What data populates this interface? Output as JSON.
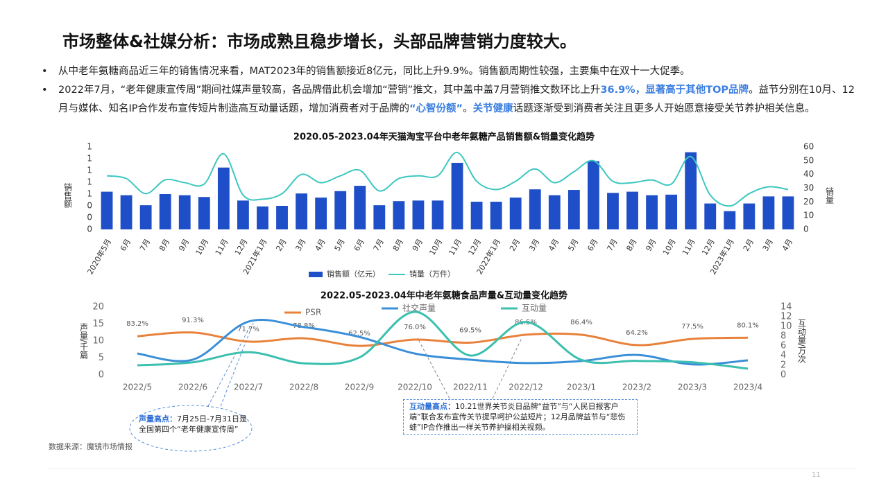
{
  "header": {
    "title": "市场整体&社媒分析：市场成熟且稳步增长，头部品牌营销力度较大。"
  },
  "bullets": [
    [
      {
        "text": "从中老年氨糖商品近三年的销售情况来看，MAT2023年的销售额接近8亿元，同比上升9.9%。销售额周期性较强，主要集中在双十一大促季。",
        "emphasis": false
      }
    ],
    [
      {
        "text": "2022年7月，“老年健康宣传周”期间社媒声量较高，各品牌借此机会增加“营销”推文，其中盖中盖7月营销推文数环比上升",
        "emphasis": false
      },
      {
        "text": "36.9%，显著高于其他TOP品牌",
        "emphasis": true
      },
      {
        "text": "。益节分别在10月、12月与媒体、知名IP合作发布宣传短片制造高互动量话题，增加消费者对于品牌的",
        "emphasis": false
      },
      {
        "text": "“心智份额”",
        "emphasis": true
      },
      {
        "text": "。",
        "emphasis": false
      },
      {
        "text": "关节健康",
        "emphasis": true
      },
      {
        "text": "话题逐渐受到消费者关注且更多人开始愿意接受关节养护相关信息。",
        "emphasis": false
      }
    ]
  ],
  "chart_data": [
    {
      "type": "combo",
      "title": "2020.05-2023.04年天猫淘宝平台中老年氨糖产品销售额&销量变化趋势",
      "ylabel": "销售额",
      "y2label": "销量",
      "categories": [
        "2020年5月",
        "6月",
        "7月",
        "8月",
        "9月",
        "10月",
        "11月",
        "12月",
        "2021年1月",
        "2月",
        "3月",
        "4月",
        "5月",
        "6月",
        "7月",
        "8月",
        "9月",
        "10月",
        "11月",
        "12月",
        "2022年1月",
        "2月",
        "3月",
        "4月",
        "5月",
        "6月",
        "7月",
        "8月",
        "9月",
        "10月",
        "11月",
        "12月",
        "2023年1月",
        "2月",
        "3月",
        "4月"
      ],
      "series": [
        {
          "name": "销售额（亿元）",
          "type": "bar",
          "color": "#1f4fc8",
          "values": [
            0.64,
            0.58,
            0.41,
            0.6,
            0.58,
            0.55,
            1.05,
            0.49,
            0.39,
            0.4,
            0.61,
            0.54,
            0.65,
            0.74,
            0.41,
            0.48,
            0.49,
            0.49,
            1.13,
            0.47,
            0.47,
            0.54,
            0.68,
            0.58,
            0.67,
            1.16,
            0.62,
            0.64,
            0.58,
            0.59,
            1.31,
            0.44,
            0.31,
            0.44,
            0.56,
            0.56
          ]
        },
        {
          "name": "销量（万件）",
          "type": "line",
          "axis": "y2",
          "color": "#3cc7c0",
          "values": [
            39,
            37,
            26,
            36,
            34,
            33,
            55,
            25,
            22,
            26,
            40,
            34,
            39,
            43,
            28,
            37,
            39,
            39,
            56,
            35,
            29,
            35,
            44,
            34,
            42,
            50,
            35,
            34,
            36,
            33,
            53,
            25,
            17,
            26,
            31,
            29
          ]
        }
      ],
      "ylim": [
        0,
        1.4
      ],
      "yticks": [
        0,
        {
          "value": 0.2,
          "label": "0"
        },
        {
          "value": 0.4,
          "label": "0"
        },
        {
          "value": 0.6,
          "label": "1"
        },
        {
          "value": 0.8,
          "label": "1"
        },
        1,
        {
          "value": 1.2,
          "label": "1"
        },
        {
          "value": 1.4,
          "label": "1"
        }
      ],
      "y2lim": [
        0,
        60
      ],
      "y2ticks": [
        0,
        10,
        20,
        30,
        40,
        50,
        60
      ],
      "legend": "bottom"
    },
    {
      "type": "line",
      "title": "2022.05-2023.04年中老年氨糖食品声量&互动量变化趋势",
      "ylabel": "声量/千篇",
      "y2label": "互动量/万次",
      "categories": [
        "2022/5",
        "2022/6",
        "2022/7",
        "2022/8",
        "2022/9",
        "2022/10",
        "2022/11",
        "2022/12",
        "2023/1",
        "2023/2",
        "2023/3",
        "2023/4"
      ],
      "series": [
        {
          "name": "PSR",
          "color": "#e8813a",
          "values": [
            83.2,
            91.3,
            71.7,
            78.8,
            62.5,
            76.0,
            69.5,
            86.5,
            86.4,
            64.2,
            77.5,
            80.1
          ],
          "value_labels": [
            "83.2%",
            "91.3%",
            "71.7%",
            "78.8%",
            "62.5%",
            "76.0%",
            "69.5%",
            "86.5%",
            "86.4%",
            "64.2%",
            "77.5%",
            "80.1%"
          ]
        },
        {
          "name": "社交声量",
          "color": "#3a8fd8",
          "values": [
            6.3,
            4.5,
            15.7,
            14.1,
            11.2,
            6.3,
            4.5,
            3.5,
            4.1,
            5.9,
            3.1,
            4.3
          ]
        },
        {
          "name": "互动量",
          "axis": "y2",
          "color": "#3bbfae",
          "values": [
            2.0,
            2.6,
            4.7,
            2.4,
            3.6,
            13.0,
            4.0,
            10.9,
            3.1,
            2.9,
            2.6,
            1.3
          ]
        }
      ],
      "ylim": [
        0,
        20
      ],
      "yticks": [
        0,
        5,
        10,
        15,
        20
      ],
      "y2lim": [
        0,
        14
      ],
      "y2ticks": [
        0,
        2,
        4,
        6,
        8,
        10,
        12,
        14
      ],
      "legend": "top"
    }
  ],
  "annotations": [
    {
      "label": "声量高点：",
      "text": "7月25日-7月31日是全国第四个“老年健康宣传周”"
    },
    {
      "label": "互动量高点：",
      "text": "10.21世界关节炎日品牌“益节”与“人民日报客户端”联合发布宣传关节提早呵护公益短片；12月品牌益节与“悲伤蛙”IP合作推出一样关节养护操相关视频。"
    }
  ],
  "source": "数据来源：魔镜市场情报",
  "page_number": "11"
}
